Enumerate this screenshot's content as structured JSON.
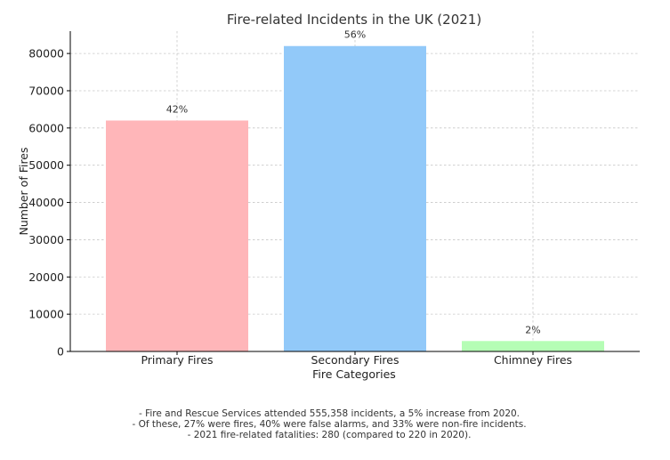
{
  "chart_data": {
    "type": "bar",
    "title": "Fire-related Incidents in the UK (2021)",
    "xlabel": "Fire Categories",
    "ylabel": "Number of Fires",
    "categories": [
      "Primary Fires",
      "Secondary Fires",
      "Chimney Fires"
    ],
    "values": [
      62000,
      82000,
      2800
    ],
    "data_labels": [
      "42%",
      "56%",
      "2%"
    ],
    "colors": [
      "#ffb6b9",
      "#92c9f9",
      "#b5fdb5"
    ],
    "ylim": [
      0,
      86000
    ],
    "yticks": [
      0,
      10000,
      20000,
      30000,
      40000,
      50000,
      60000,
      70000,
      80000
    ],
    "ytick_labels": [
      "0",
      "10000",
      "20000",
      "30000",
      "40000",
      "50000",
      "60000",
      "70000",
      "80000"
    ],
    "grid": true
  },
  "notes": [
    "- Fire and Rescue Services attended 555,358 incidents, a 5% increase from 2020.",
    "- Of these, 27% were fires, 40% were false alarms, and 33% were non-fire incidents.",
    "- 2021 fire-related fatalities: 280 (compared to 220 in 2020)."
  ]
}
